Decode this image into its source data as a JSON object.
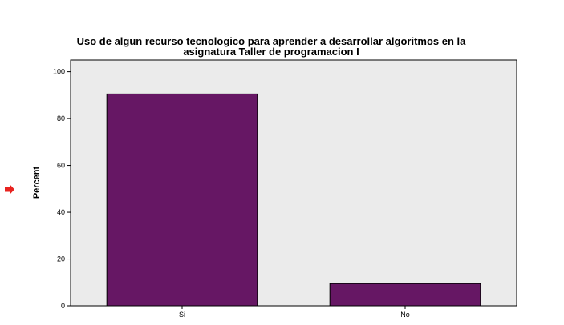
{
  "chart_data": {
    "type": "bar",
    "title": [
      "Uso de algun recurso tecnologico para aprender a desarrollar algoritmos en la",
      "asignatura Taller de programacion I"
    ],
    "xlabel": "",
    "ylabel": "Percent",
    "categories": [
      "Si",
      "No"
    ],
    "values": [
      90.5,
      9.5
    ],
    "ylim": [
      0,
      105
    ],
    "yticks": [
      0,
      20,
      40,
      60,
      80,
      100
    ],
    "grid": false,
    "colors": {
      "bar": "#661764",
      "plot_background": "#ebebeb",
      "marker_arrow": "#e8231f"
    }
  }
}
